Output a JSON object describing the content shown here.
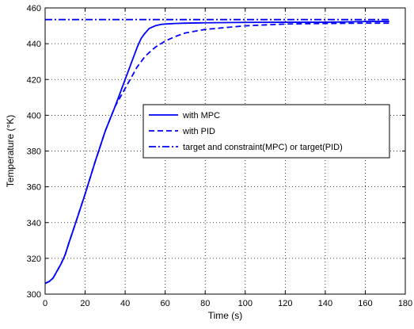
{
  "chart_data": {
    "type": "line",
    "title": "",
    "xlabel": "Time (s)",
    "ylabel": "Temperature (°K)",
    "xlim": [
      0,
      180
    ],
    "ylim": [
      300,
      460
    ],
    "xticks": [
      0,
      20,
      40,
      60,
      80,
      100,
      120,
      140,
      160,
      180
    ],
    "yticks": [
      300,
      320,
      340,
      360,
      380,
      400,
      420,
      440,
      460
    ],
    "grid": true,
    "grid_style": "dotted",
    "legend_position": "center-right",
    "line_color": "#0000ff",
    "series": [
      {
        "name": "with MPC",
        "style": "solid",
        "x": [
          0,
          2,
          4,
          6,
          8,
          10,
          12,
          15,
          20,
          25,
          30,
          35,
          40,
          43,
          46,
          48,
          50,
          52,
          55,
          58,
          60,
          65,
          70,
          80,
          100,
          120,
          140,
          150,
          160,
          172
        ],
        "y": [
          306,
          307,
          309,
          313,
          317,
          322,
          329,
          339,
          356,
          374,
          391,
          405,
          420,
          429,
          438,
          443,
          446,
          448.5,
          450,
          450.8,
          451,
          451.3,
          451.5,
          451.7,
          451.9,
          452,
          452,
          452.2,
          452.4,
          452.5
        ]
      },
      {
        "name": "with PID",
        "style": "dashed",
        "x": [
          0,
          2,
          4,
          6,
          8,
          10,
          12,
          15,
          20,
          25,
          30,
          35,
          40,
          43,
          46,
          50,
          55,
          60,
          65,
          70,
          80,
          90,
          100,
          110,
          120,
          130,
          140,
          150,
          160,
          172
        ],
        "y": [
          306,
          307,
          309,
          313,
          317,
          322,
          329,
          339,
          356,
          374,
          391,
          405,
          415,
          421,
          427,
          433,
          438,
          441.5,
          444,
          446,
          448,
          449,
          450,
          450.5,
          451,
          451.2,
          451.3,
          451.4,
          451.5,
          451.5
        ]
      },
      {
        "name": "target and constraint(MPC) or target(PID)",
        "style": "dashdot",
        "x": [
          0,
          172
        ],
        "y": [
          453.5,
          453.5
        ]
      }
    ]
  }
}
